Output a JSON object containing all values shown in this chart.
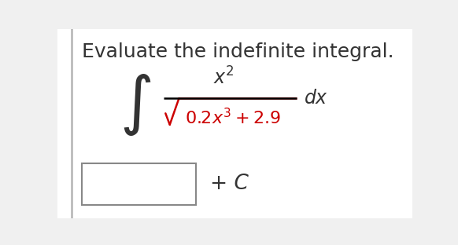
{
  "title": "Evaluate the indefinite integral.",
  "title_color": "#333333",
  "title_fontsize": 18,
  "background_color": "#f0f0f0",
  "panel_color": "#ffffff",
  "integral_sign_color": "#333333",
  "numerator_color": "#333333",
  "denominator_color": "#cc0000",
  "dx_color": "#333333",
  "plus_c": "+ C",
  "plus_c_color": "#333333",
  "fraction_line_color": "#000000",
  "sqrt_color": "#cc0000",
  "box_color": "#888888"
}
